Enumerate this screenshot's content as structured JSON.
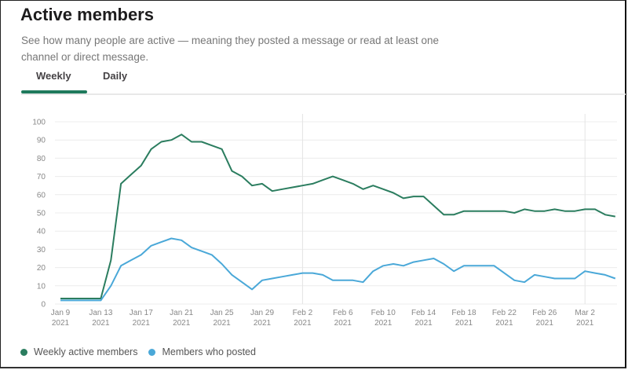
{
  "header": {
    "title": "Active members",
    "description": "See how many people are active — meaning they posted a message or read at least one channel or direct message."
  },
  "tabs": [
    {
      "label": "Weekly",
      "active": true
    },
    {
      "label": "Daily",
      "active": false
    }
  ],
  "colors": {
    "weekly": "#2b7d5f",
    "posted": "#4aa8d8",
    "accent": "#1f7a5c"
  },
  "chart_data": {
    "type": "line",
    "title": "",
    "xlabel": "",
    "ylabel": "",
    "ylim": [
      0,
      100
    ],
    "yticks": [
      0,
      10,
      20,
      30,
      40,
      50,
      60,
      70,
      80,
      90,
      100
    ],
    "grid": true,
    "legend_position": "bottom-left",
    "x_start": "Jan 9 2021",
    "x_unit": "day",
    "x_ticks": [
      {
        "day": 0,
        "label1": "Jan 9",
        "label2": "2021"
      },
      {
        "day": 4,
        "label1": "Jan 13",
        "label2": "2021"
      },
      {
        "day": 8,
        "label1": "Jan 17",
        "label2": "2021"
      },
      {
        "day": 12,
        "label1": "Jan 21",
        "label2": "2021"
      },
      {
        "day": 16,
        "label1": "Jan 25",
        "label2": "2021"
      },
      {
        "day": 20,
        "label1": "Jan 29",
        "label2": "2021"
      },
      {
        "day": 24,
        "label1": "Feb 2",
        "label2": "2021"
      },
      {
        "day": 28,
        "label1": "Feb 6",
        "label2": "2021"
      },
      {
        "day": 32,
        "label1": "Feb 10",
        "label2": "2021"
      },
      {
        "day": 36,
        "label1": "Feb 14",
        "label2": "2021"
      },
      {
        "day": 40,
        "label1": "Feb 18",
        "label2": "2021"
      },
      {
        "day": 44,
        "label1": "Feb 22",
        "label2": "2021"
      },
      {
        "day": 48,
        "label1": "Feb 26",
        "label2": "2021"
      },
      {
        "day": 52,
        "label1": "Mar 2",
        "label2": "2021"
      }
    ],
    "month_markers": [
      24,
      52
    ],
    "series": [
      {
        "name": "Weekly active members",
        "color": "#2b7d5f",
        "values": [
          3,
          3,
          3,
          3,
          3,
          24,
          66,
          71,
          76,
          85,
          89,
          90,
          93,
          89,
          89,
          87,
          85,
          73,
          70,
          65,
          66,
          62,
          63,
          64,
          65,
          66,
          68,
          70,
          68,
          66,
          63,
          65,
          63,
          61,
          58,
          59,
          59,
          54,
          49,
          49,
          51,
          51,
          51,
          51,
          51,
          50,
          52,
          51,
          51,
          52,
          51,
          51,
          52,
          52,
          49,
          48
        ]
      },
      {
        "name": "Members who posted",
        "color": "#4aa8d8",
        "values": [
          2,
          2,
          2,
          2,
          2,
          10,
          21,
          24,
          27,
          32,
          34,
          36,
          35,
          31,
          29,
          27,
          22,
          16,
          12,
          8,
          13,
          14,
          15,
          16,
          17,
          17,
          16,
          13,
          13,
          13,
          12,
          18,
          21,
          22,
          21,
          23,
          24,
          25,
          22,
          18,
          21,
          21,
          21,
          21,
          17,
          13,
          12,
          16,
          15,
          14,
          14,
          14,
          18,
          17,
          16,
          14
        ]
      }
    ]
  }
}
